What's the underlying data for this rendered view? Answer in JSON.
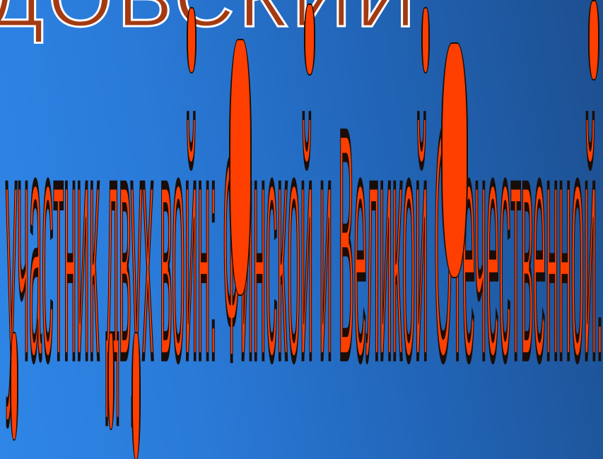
{
  "slide": {
    "title_fragment": "ДОВСКИЙ",
    "wordart_text": "участник двух войн: Финской и Великой Отечественной."
  },
  "colors": {
    "background_start": "#2f86e6",
    "background_end": "#1d4f8f",
    "title_fill": "#a33a12",
    "title_stroke": "#ffffff",
    "wordart_fill": "#ff3f00",
    "wordart_stroke": "#1a0d07"
  }
}
